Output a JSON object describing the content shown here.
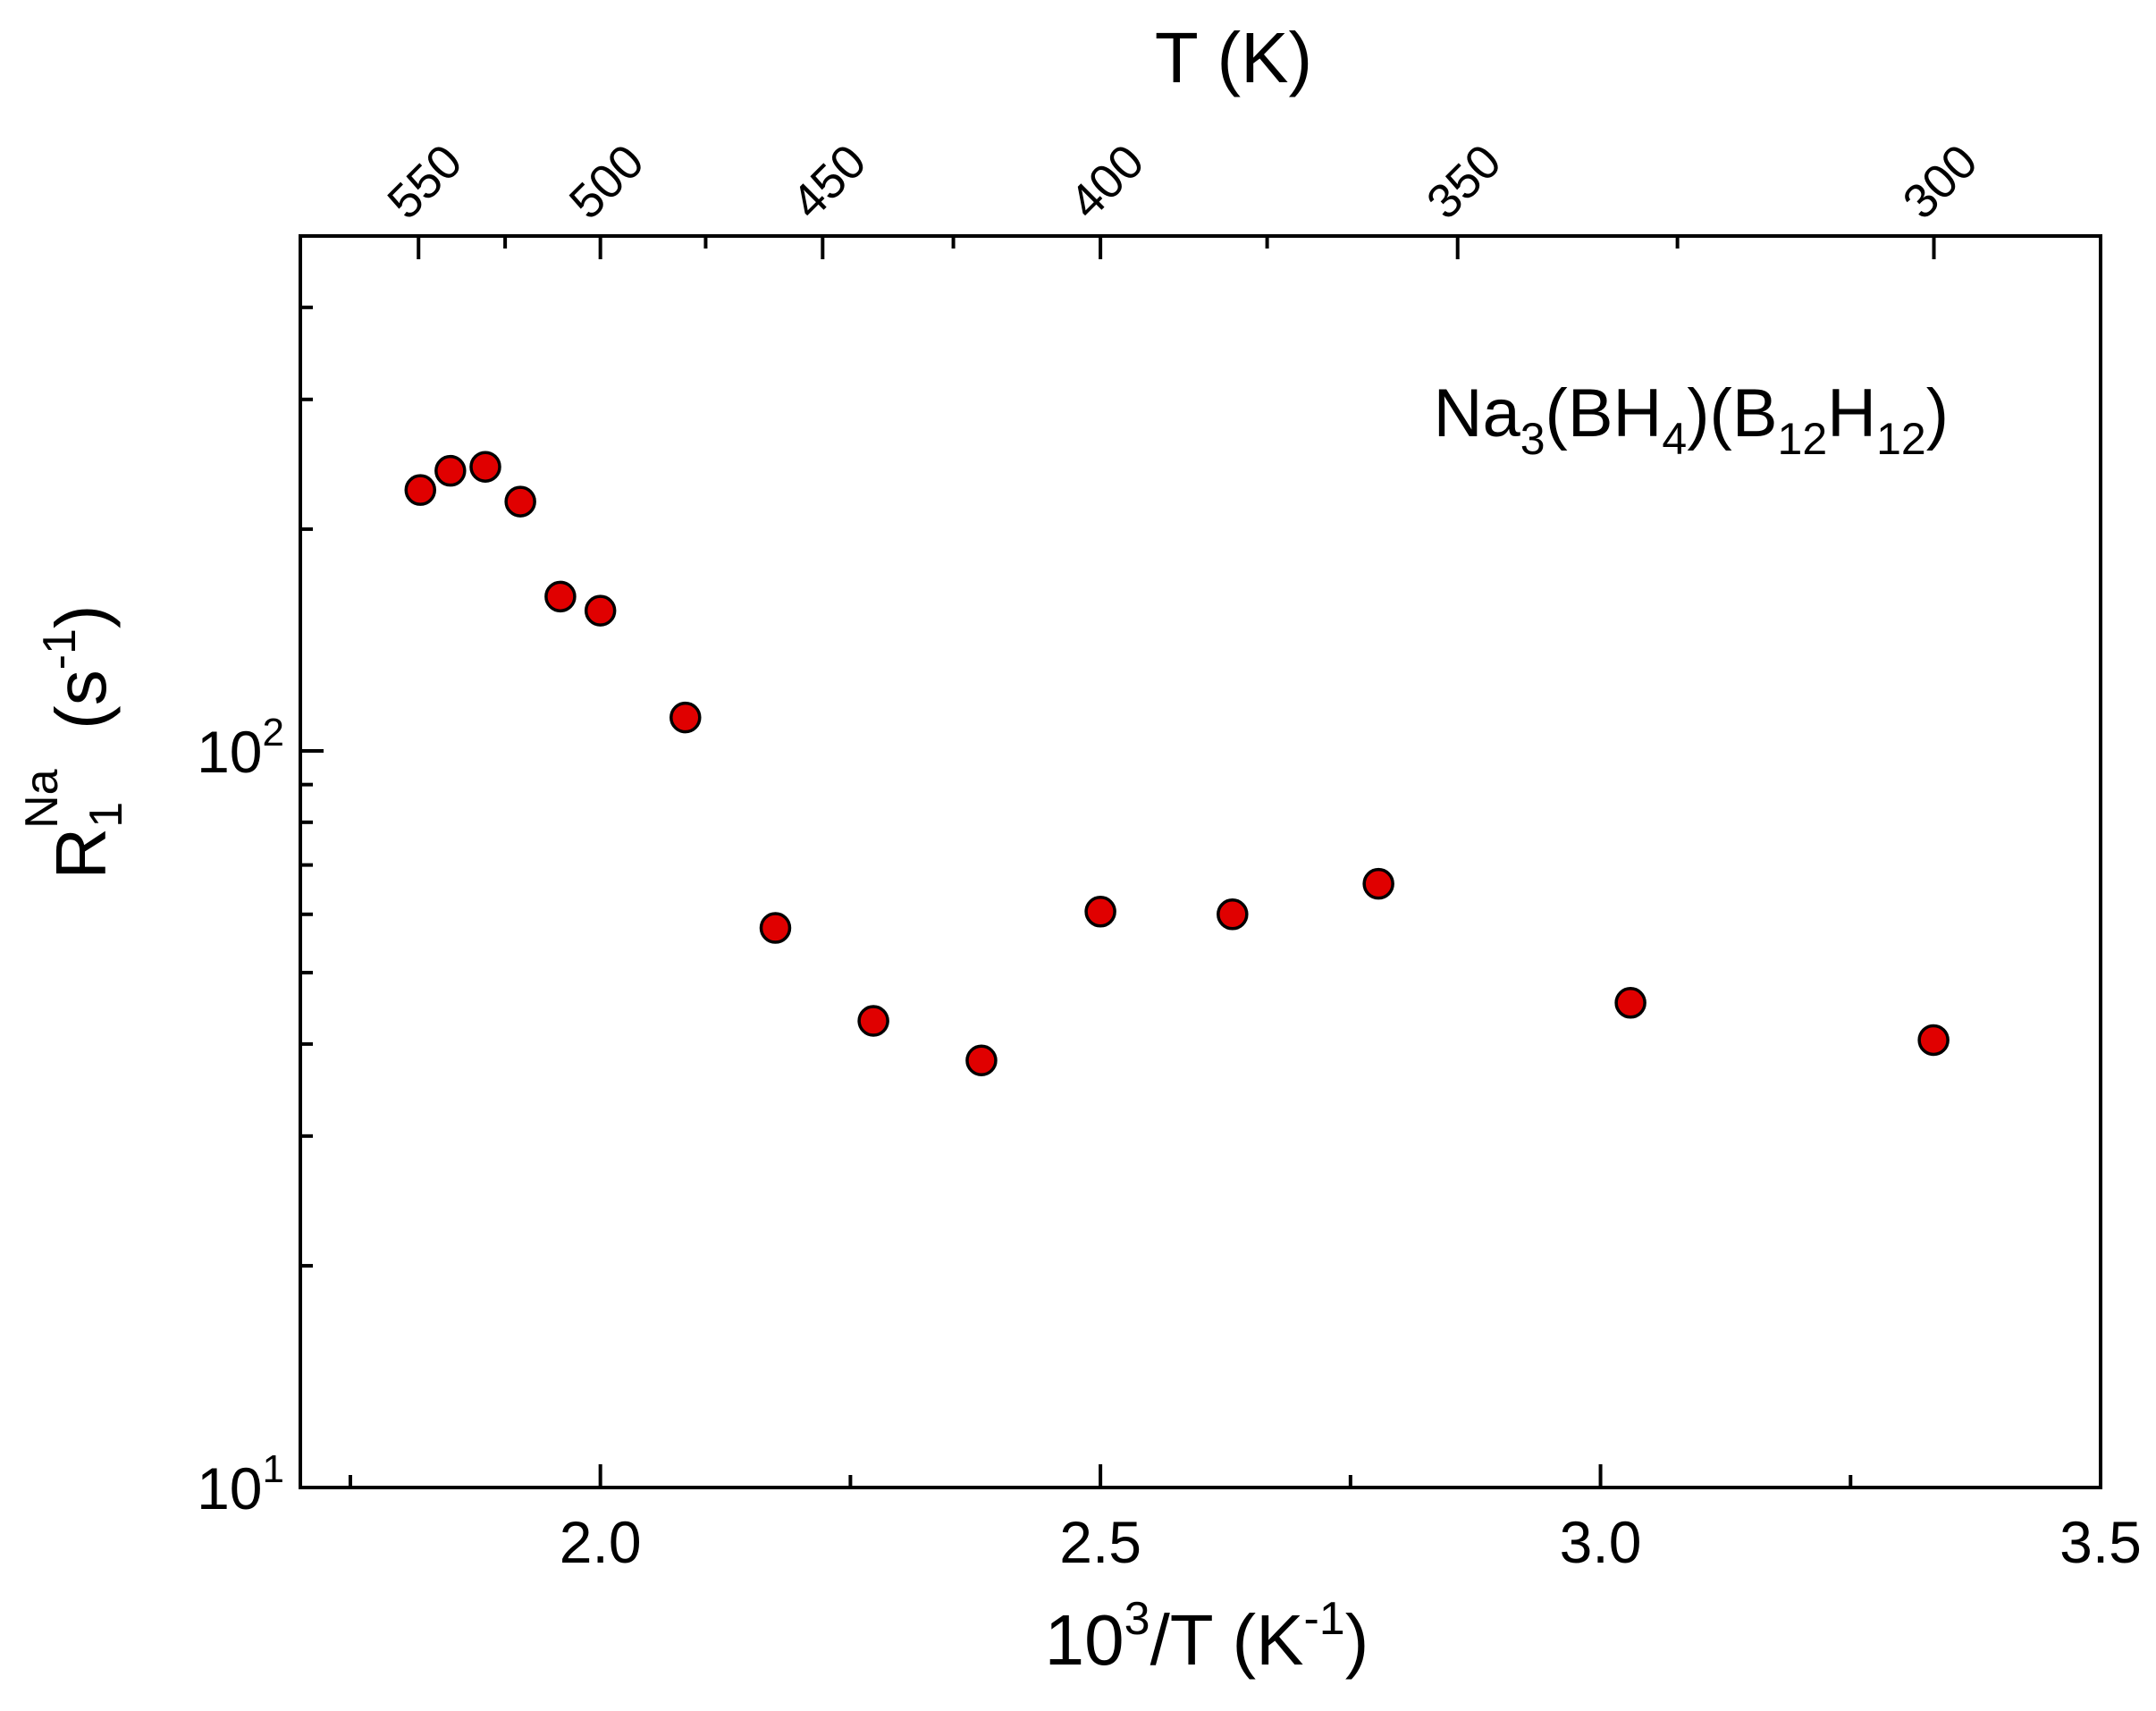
{
  "chart_data": {
    "type": "scatter",
    "annotation": {
      "base": "Na",
      "parts": [
        {
          "text": "Na",
          "sub": false
        },
        {
          "text": "3",
          "sub": true
        },
        {
          "text": "(BH",
          "sub": false
        },
        {
          "text": "4",
          "sub": true
        },
        {
          "text": ")(B",
          "sub": false
        },
        {
          "text": "12",
          "sub": true
        },
        {
          "text": "H",
          "sub": false
        },
        {
          "text": "12",
          "sub": true
        },
        {
          "text": ")",
          "sub": false
        }
      ]
    },
    "xlabel": {
      "main": "10",
      "sup": "3",
      "mid": "/T  (K",
      "sup2": "-1",
      "end": ")"
    },
    "ylabel": {
      "main": "R",
      "sub": "1",
      "sup": "Na",
      "unit_open": "  (s",
      "unit_sup": "-1",
      "unit_close": ")"
    },
    "top_label": "T  (K)",
    "xlim": [
      1.7,
      3.5
    ],
    "ylim": [
      10,
      500
    ],
    "y_scale": "log",
    "x_ticks": [
      "2.0",
      "2.5",
      "3.0",
      "3.5"
    ],
    "x_tick_values": [
      2.0,
      2.5,
      3.0,
      3.5
    ],
    "y_ticks": [
      {
        "base": "10",
        "exp": "1",
        "value": 10
      },
      {
        "base": "10",
        "exp": "2",
        "value": 100
      }
    ],
    "top_ticks": [
      {
        "label": "550",
        "T": 550
      },
      {
        "label": "500",
        "T": 500
      },
      {
        "label": "450",
        "T": 450
      },
      {
        "label": "400",
        "T": 400
      },
      {
        "label": "350",
        "T": 350
      },
      {
        "label": "300",
        "T": 300
      }
    ],
    "top_minor_T": [
      525,
      475,
      425,
      375,
      325
    ],
    "marker_color": "#e00000",
    "series": [
      {
        "points": [
          {
            "x": 1.82,
            "y": 226
          },
          {
            "x": 1.85,
            "y": 240
          },
          {
            "x": 1.885,
            "y": 243
          },
          {
            "x": 1.92,
            "y": 218
          },
          {
            "x": 1.96,
            "y": 162
          },
          {
            "x": 2.0,
            "y": 155
          },
          {
            "x": 2.085,
            "y": 111
          },
          {
            "x": 2.175,
            "y": 57.5
          },
          {
            "x": 2.273,
            "y": 43
          },
          {
            "x": 2.381,
            "y": 38
          },
          {
            "x": 2.5,
            "y": 60.5
          },
          {
            "x": 2.632,
            "y": 60
          },
          {
            "x": 2.778,
            "y": 66
          },
          {
            "x": 3.03,
            "y": 45.5
          },
          {
            "x": 3.333,
            "y": 40.5
          }
        ]
      }
    ]
  }
}
